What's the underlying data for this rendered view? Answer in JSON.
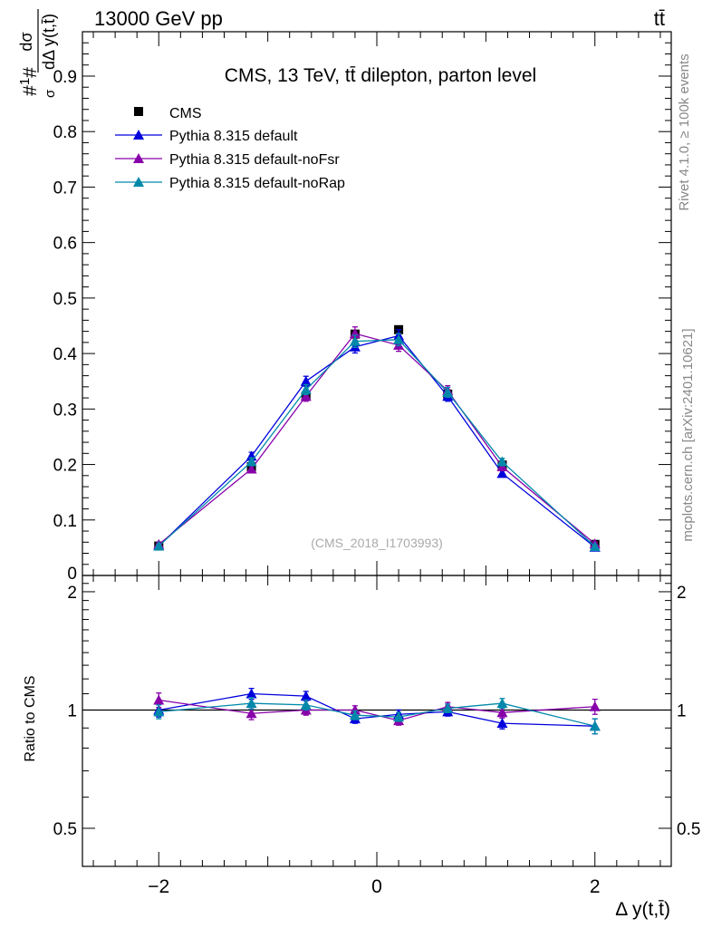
{
  "header": {
    "energy_label": "13000 GeV pp",
    "process_label": "tt̄"
  },
  "side_labels": {
    "rivet": "Rivet 4.1.0, ≥ 100k events",
    "mcplots": "mcplots.cern.ch [arXiv:2401.10621]"
  },
  "chart_data": {
    "type": "line",
    "title": "CMS, 13 TeV, tt̄ dilepton, parton level",
    "watermark": "(CMS_2018_I1703993)",
    "xlabel": "Δ y(t,t̄)",
    "ylabel_top": "#1/σ# dσ / dΔ y(t,t̄)",
    "ylabel_top_parts": {
      "prefix": "#",
      "num": "1",
      "den": "σ",
      "mid": "#",
      "frac_num": "dσ",
      "frac_den": "dΔ y(t,t̄)"
    },
    "ylabel_ratio": "Ratio to CMS",
    "xlim": [
      -2.7,
      2.7
    ],
    "ylim_top": [
      0.0,
      0.98
    ],
    "ylim_ratio": [
      0.4,
      2.2
    ],
    "x_ticks": [
      -2,
      0,
      2
    ],
    "x_tick_labels": [
      "−2",
      "0",
      "2"
    ],
    "y_ticks_top": [
      0.1,
      0.2,
      0.3,
      0.4,
      0.5,
      0.6,
      0.7,
      0.8,
      0.9
    ],
    "y_tick_labels_top": [
      "0.1",
      "0.2",
      "0.3",
      "0.4",
      "0.5",
      "0.6",
      "0.7",
      "0.8",
      "0.9"
    ],
    "y_bottom_label": "0",
    "y_ticks_ratio": [
      0.5,
      1,
      2
    ],
    "y_tick_labels_ratio": [
      "0.5",
      "1",
      "2"
    ],
    "x": [
      -2.0,
      -1.15,
      -0.65,
      -0.2,
      0.2,
      0.65,
      1.15,
      2.0
    ],
    "data": {
      "name": "CMS",
      "marker": "square",
      "color": "#000000",
      "values": [
        0.053,
        0.196,
        0.323,
        0.435,
        0.443,
        0.327,
        0.199,
        0.056
      ]
    },
    "series": [
      {
        "name": "Pythia 8.315 default",
        "color": "#0000dd",
        "values": [
          0.053,
          0.215,
          0.35,
          0.412,
          0.432,
          0.323,
          0.184,
          0.051
        ],
        "errors": [
          0.003,
          0.007,
          0.009,
          0.011,
          0.011,
          0.009,
          0.006,
          0.003
        ],
        "ratio": [
          1.0,
          1.1,
          1.085,
          0.95,
          0.975,
          0.99,
          0.925,
          0.91
        ],
        "ratio_err": [
          0.04,
          0.035,
          0.03,
          0.025,
          0.025,
          0.025,
          0.03,
          0.04
        ]
      },
      {
        "name": "Pythia 8.315 default-noFsr",
        "color": "#8800aa",
        "values": [
          0.056,
          0.192,
          0.323,
          0.436,
          0.415,
          0.333,
          0.196,
          0.057
        ],
        "errors": [
          0.003,
          0.007,
          0.009,
          0.012,
          0.011,
          0.009,
          0.006,
          0.003
        ],
        "ratio": [
          1.06,
          0.98,
          1.0,
          1.0,
          0.94,
          1.02,
          0.985,
          1.02
        ],
        "ratio_err": [
          0.045,
          0.035,
          0.03,
          0.025,
          0.025,
          0.025,
          0.03,
          0.045
        ]
      },
      {
        "name": "Pythia 8.315 default-noRap",
        "color": "#0088aa",
        "values": [
          0.053,
          0.205,
          0.335,
          0.422,
          0.425,
          0.33,
          0.205,
          0.052
        ],
        "errors": [
          0.003,
          0.007,
          0.009,
          0.011,
          0.011,
          0.009,
          0.006,
          0.003
        ],
        "ratio": [
          0.99,
          1.04,
          1.03,
          0.97,
          0.96,
          1.01,
          1.04,
          0.91
        ],
        "ratio_err": [
          0.04,
          0.035,
          0.03,
          0.025,
          0.025,
          0.025,
          0.03,
          0.04
        ]
      }
    ],
    "legend_position": "top-left"
  }
}
